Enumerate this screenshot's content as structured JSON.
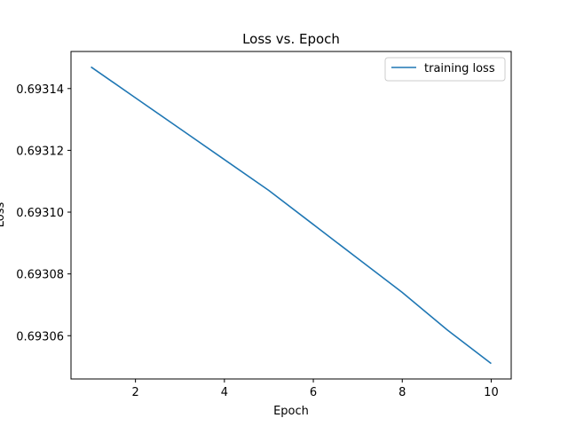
{
  "chart_data": {
    "type": "line",
    "title": "Loss vs. Epoch",
    "xlabel": "Epoch",
    "ylabel": "Loss",
    "xlim": [
      0.55,
      10.45
    ],
    "ylim": [
      0.693046,
      0.693152
    ],
    "xticks": [
      2,
      4,
      6,
      8,
      10
    ],
    "yticks": [
      0.69306,
      0.69308,
      0.6931,
      0.69312,
      0.69314
    ],
    "ytick_labels": [
      "0.69306",
      "0.69308",
      "0.69310",
      "0.69312",
      "0.69314"
    ],
    "grid": false,
    "legend_position": "top-right",
    "series": [
      {
        "name": "training loss",
        "color": "#1f77b4",
        "x": [
          1,
          2,
          3,
          4,
          5,
          6,
          7,
          8,
          9,
          10
        ],
        "y": [
          0.693147,
          0.693137,
          0.693127,
          0.693117,
          0.693107,
          0.693096,
          0.693085,
          0.693074,
          0.693062,
          0.693051
        ]
      }
    ]
  }
}
